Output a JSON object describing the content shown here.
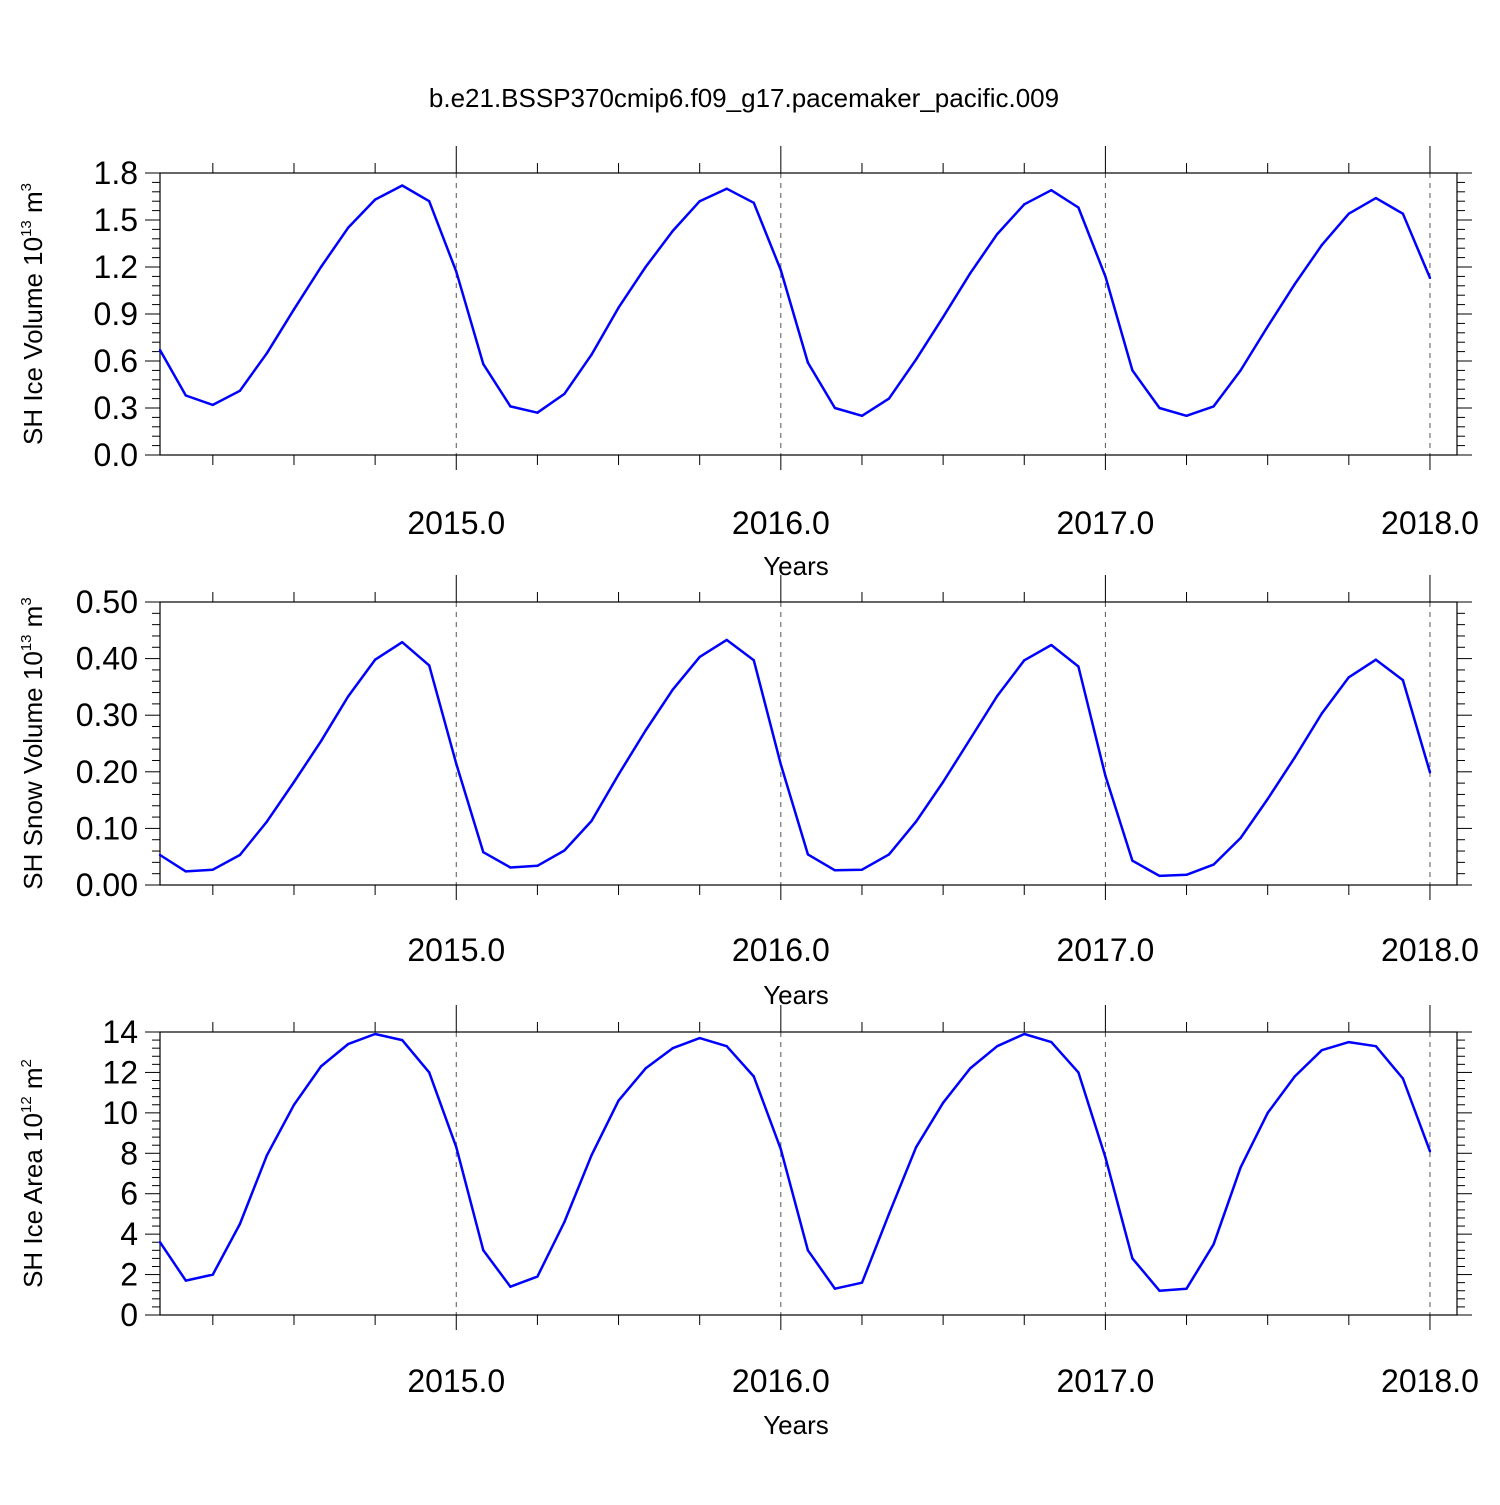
{
  "title": "b.e21.BSSP370cmip6.f09_g17.pacemaker_pacific.009",
  "chart_data": [
    {
      "type": "line",
      "ylabel": {
        "text": "SH Ice Volume 10",
        "exp1": "13",
        "mid": " m",
        "exp2": "3"
      },
      "xlabel": "Years",
      "ylim": [
        0,
        1.8
      ],
      "yticks": [
        "0.0",
        "0.3",
        "0.6",
        "0.9",
        "1.2",
        "1.5",
        "1.8"
      ],
      "yticks_values": [
        0,
        0.3,
        0.6,
        0.9,
        1.2,
        1.5,
        1.8
      ],
      "xlim": [
        2014.0872,
        2018.0833
      ],
      "xticks": [
        "2015.0",
        "2016.0",
        "2017.0",
        "2018.0"
      ],
      "xticks_values": [
        2015,
        2016,
        2017,
        2018
      ],
      "grid": "dashed vertical lines at year boundaries",
      "color": "#0000ff",
      "x": [
        2014.0833,
        2014.1667,
        2014.25,
        2014.3333,
        2014.4167,
        2014.5,
        2014.5833,
        2014.6667,
        2014.75,
        2014.8333,
        2014.9167,
        2015.0,
        2015.0833,
        2015.1667,
        2015.25,
        2015.3333,
        2015.4167,
        2015.5,
        2015.5833,
        2015.6667,
        2015.75,
        2015.8333,
        2015.9167,
        2016.0,
        2016.0833,
        2016.1667,
        2016.25,
        2016.3333,
        2016.4167,
        2016.5,
        2016.5833,
        2016.6667,
        2016.75,
        2016.8333,
        2016.9167,
        2017.0,
        2017.0833,
        2017.1667,
        2017.25,
        2017.3333,
        2017.4167,
        2017.5,
        2017.5833,
        2017.6667,
        2017.75,
        2017.8333,
        2017.9167,
        2018.0
      ],
      "values": [
        0.67,
        0.38,
        0.32,
        0.41,
        0.65,
        0.93,
        1.2,
        1.45,
        1.63,
        1.72,
        1.62,
        1.17,
        0.58,
        0.31,
        0.27,
        0.39,
        0.64,
        0.94,
        1.2,
        1.43,
        1.62,
        1.7,
        1.61,
        1.18,
        0.59,
        0.3,
        0.25,
        0.36,
        0.61,
        0.88,
        1.16,
        1.41,
        1.6,
        1.69,
        1.58,
        1.14,
        0.54,
        0.3,
        0.25,
        0.31,
        0.54,
        0.82,
        1.09,
        1.34,
        1.54,
        1.64,
        1.54,
        1.13
      ]
    },
    {
      "type": "line",
      "ylabel": {
        "text": "SH Snow Volume 10",
        "exp1": "13",
        "mid": " m",
        "exp2": "3"
      },
      "xlabel": "Years",
      "ylim": [
        0,
        0.5
      ],
      "yticks": [
        "0.00",
        "0.10",
        "0.20",
        "0.30",
        "0.40",
        "0.50"
      ],
      "yticks_values": [
        0,
        0.1,
        0.2,
        0.3,
        0.4,
        0.5
      ],
      "xlim": [
        2014.0872,
        2018.0833
      ],
      "xticks": [
        "2015.0",
        "2016.0",
        "2017.0",
        "2018.0"
      ],
      "xticks_values": [
        2015,
        2016,
        2017,
        2018
      ],
      "grid": "dashed vertical lines at year boundaries",
      "color": "#0000ff",
      "x": [
        2014.0833,
        2014.1667,
        2014.25,
        2014.3333,
        2014.4167,
        2014.5,
        2014.5833,
        2014.6667,
        2014.75,
        2014.8333,
        2014.9167,
        2015.0,
        2015.0833,
        2015.1667,
        2015.25,
        2015.3333,
        2015.4167,
        2015.5,
        2015.5833,
        2015.6667,
        2015.75,
        2015.8333,
        2015.9167,
        2016.0,
        2016.0833,
        2016.1667,
        2016.25,
        2016.3333,
        2016.4167,
        2016.5,
        2016.5833,
        2016.6667,
        2016.75,
        2016.8333,
        2016.9167,
        2017.0,
        2017.0833,
        2017.1667,
        2017.25,
        2017.3333,
        2017.4167,
        2017.5,
        2017.5833,
        2017.6667,
        2017.75,
        2017.8333,
        2017.9167,
        2018.0
      ],
      "values": [
        0.053,
        0.024,
        0.027,
        0.053,
        0.112,
        0.182,
        0.254,
        0.333,
        0.398,
        0.429,
        0.388,
        0.214,
        0.058,
        0.031,
        0.034,
        0.061,
        0.113,
        0.195,
        0.273,
        0.345,
        0.403,
        0.433,
        0.397,
        0.213,
        0.054,
        0.026,
        0.027,
        0.054,
        0.112,
        0.182,
        0.258,
        0.334,
        0.397,
        0.424,
        0.386,
        0.193,
        0.043,
        0.016,
        0.018,
        0.036,
        0.083,
        0.152,
        0.225,
        0.303,
        0.367,
        0.398,
        0.362,
        0.199
      ]
    },
    {
      "type": "line",
      "ylabel": {
        "text": "SH Ice Area 10",
        "exp1": "12",
        "mid": " m",
        "exp2": "2"
      },
      "xlabel": "Years",
      "ylim": [
        0,
        14
      ],
      "yticks": [
        "0",
        "2",
        "4",
        "6",
        "8",
        "10",
        "12",
        "14"
      ],
      "yticks_values": [
        0,
        2,
        4,
        6,
        8,
        10,
        12,
        14
      ],
      "xlim": [
        2014.0872,
        2018.0833
      ],
      "xticks": [
        "2015.0",
        "2016.0",
        "2017.0",
        "2018.0"
      ],
      "xticks_values": [
        2015,
        2016,
        2017,
        2018
      ],
      "grid": "dashed vertical lines at year boundaries",
      "color": "#0000ff",
      "x": [
        2014.0833,
        2014.1667,
        2014.25,
        2014.3333,
        2014.4167,
        2014.5,
        2014.5833,
        2014.6667,
        2014.75,
        2014.8333,
        2014.9167,
        2015.0,
        2015.0833,
        2015.1667,
        2015.25,
        2015.3333,
        2015.4167,
        2015.5,
        2015.5833,
        2015.6667,
        2015.75,
        2015.8333,
        2015.9167,
        2016.0,
        2016.0833,
        2016.1667,
        2016.25,
        2016.3333,
        2016.4167,
        2016.5,
        2016.5833,
        2016.6667,
        2016.75,
        2016.8333,
        2016.9167,
        2017.0,
        2017.0833,
        2017.1667,
        2017.25,
        2017.3333,
        2017.4167,
        2017.5,
        2017.5833,
        2017.6667,
        2017.75,
        2017.8333,
        2017.9167,
        2018.0
      ],
      "values": [
        3.6,
        1.7,
        2.0,
        4.5,
        7.9,
        10.4,
        12.3,
        13.4,
        13.9,
        13.6,
        12.0,
        8.3,
        3.2,
        1.4,
        1.9,
        4.6,
        7.9,
        10.6,
        12.2,
        13.2,
        13.7,
        13.3,
        11.8,
        8.2,
        3.2,
        1.3,
        1.6,
        5.0,
        8.3,
        10.5,
        12.2,
        13.3,
        13.9,
        13.5,
        12.0,
        7.8,
        2.8,
        1.2,
        1.3,
        3.5,
        7.3,
        10.0,
        11.8,
        13.1,
        13.5,
        13.3,
        11.7,
        8.1
      ]
    }
  ]
}
